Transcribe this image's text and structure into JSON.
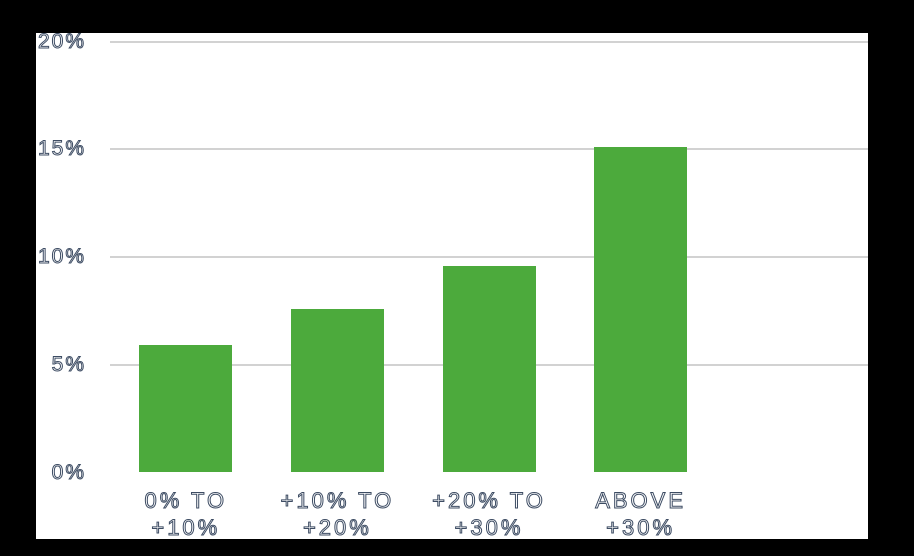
{
  "chart_data": {
    "type": "bar",
    "title": "",
    "xlabel": "",
    "ylabel": "",
    "categories": [
      [
        "0% TO",
        "+10%"
      ],
      [
        "+10% TO",
        "+20%"
      ],
      [
        "+20% TO",
        "+30%"
      ],
      [
        "ABOVE",
        "+30%"
      ]
    ],
    "values": [
      5.9,
      7.6,
      9.6,
      15.1
    ],
    "ylim": [
      0,
      20
    ],
    "yticks": [
      0,
      5,
      10,
      15,
      20
    ],
    "ytick_labels": [
      "0%",
      "5%",
      "10%",
      "15%",
      "20%"
    ],
    "grid": true,
    "gridlines_drawn_at": [
      5,
      10,
      15,
      20
    ],
    "legend": "none",
    "band_slots": 5,
    "bar_color": "#4caa3c",
    "gridline_color": "#d2d2d2",
    "label_fill_color": "#fdfdfe",
    "label_outline_color": "#3d4c63",
    "plot_background": "#ffffff",
    "frame_color": "#000000"
  }
}
